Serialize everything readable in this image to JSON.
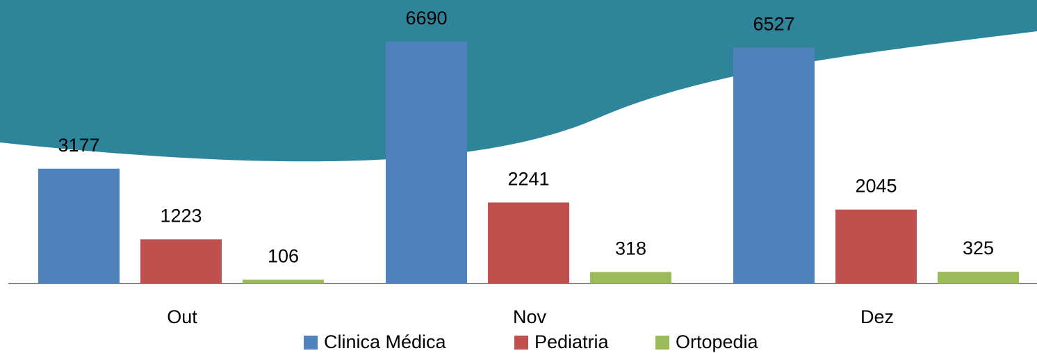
{
  "chart_data": {
    "type": "bar",
    "categories": [
      "Out",
      "Nov",
      "Dez"
    ],
    "series": [
      {
        "name": "Clinica Médica",
        "color": "#4f81bd",
        "values": [
          3177,
          6690,
          6527
        ]
      },
      {
        "name": "Pediatria",
        "color": "#c0504d",
        "values": [
          1223,
          2241,
          2045
        ]
      },
      {
        "name": "Ortopedia",
        "color": "#9bbb59",
        "values": [
          106,
          318,
          325
        ]
      }
    ]
  }
}
